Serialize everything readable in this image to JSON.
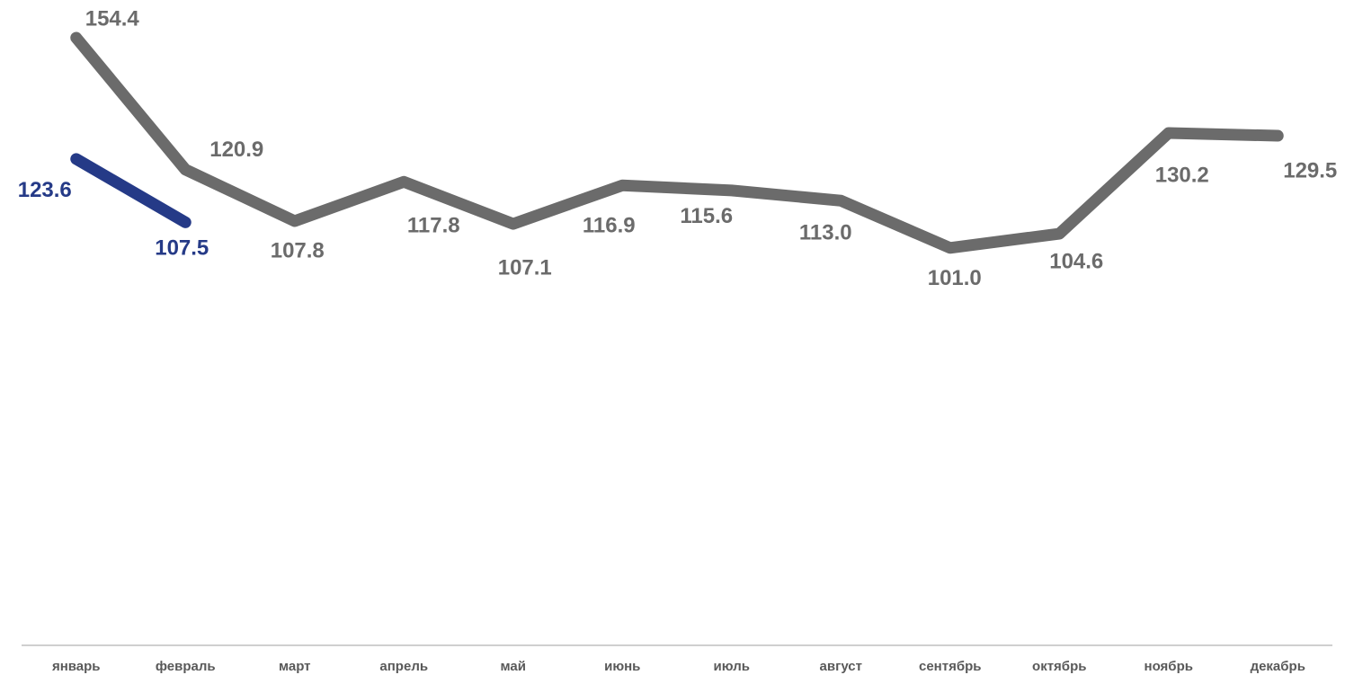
{
  "chart_data": {
    "type": "line",
    "categories": [
      "январь",
      "февраль",
      "март",
      "апрель",
      "май",
      "июнь",
      "июль",
      "август",
      "сентябрь",
      "октябрь",
      "ноябрь",
      "декабрь"
    ],
    "series": [
      {
        "color": "#6b6b6b",
        "values": [
          154.4,
          120.9,
          107.8,
          117.8,
          107.1,
          116.9,
          115.6,
          113.0,
          101.0,
          104.6,
          130.2,
          129.5
        ],
        "value_labels": [
          "154.4",
          "120.9",
          "107.8",
          "117.8",
          "107.1",
          "116.9",
          "115.6",
          "113.0",
          "101.0",
          "104.6",
          "130.2",
          "129.5"
        ]
      },
      {
        "color": "#253a87",
        "values": [
          123.6,
          107.5,
          null,
          null,
          null,
          null,
          null,
          null,
          null,
          null,
          null,
          null
        ],
        "value_labels": [
          "123.6",
          "107.5",
          null,
          null,
          null,
          null,
          null,
          null,
          null,
          null,
          null,
          null
        ]
      }
    ],
    "ylim": [
      0,
      160
    ]
  }
}
